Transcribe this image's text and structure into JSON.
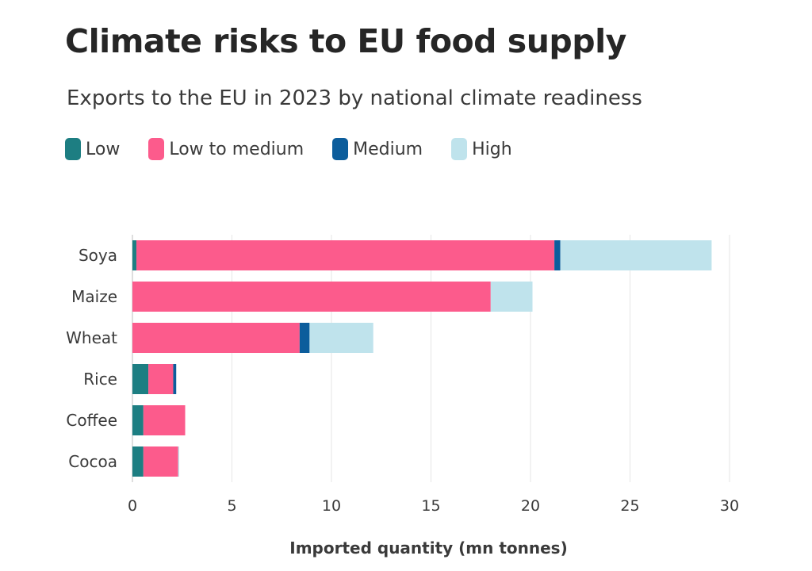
{
  "chart_data": {
    "type": "bar",
    "orientation": "horizontal",
    "stacked": true,
    "title": "Climate risks to EU food supply",
    "subtitle": "Exports to the EU in 2023 by national climate readiness",
    "xlabel": "Imported quantity (mn tonnes)",
    "ylabel": "",
    "xlim": [
      0,
      30
    ],
    "xticks": [
      "0",
      "5",
      "10",
      "15",
      "20",
      "25",
      "30"
    ],
    "grid": "vertical",
    "legend_position": "top-left",
    "categories": [
      "Soya",
      "Maize",
      "Wheat",
      "Rice",
      "Coffee",
      "Cocoa"
    ],
    "series": [
      {
        "name": "Low",
        "color": "#1d7e82",
        "values": [
          0.2,
          0.0,
          0.0,
          0.8,
          0.55,
          0.55
        ]
      },
      {
        "name": "Low to medium",
        "color": "#fc5b8c",
        "values": [
          21.0,
          18.0,
          8.4,
          1.25,
          2.1,
          1.75
        ]
      },
      {
        "name": "Medium",
        "color": "#0c5d9c",
        "values": [
          0.3,
          0.0,
          0.5,
          0.15,
          0.0,
          0.0
        ]
      },
      {
        "name": "High",
        "color": "#bfe3ec",
        "values": [
          7.6,
          2.1,
          3.2,
          0.0,
          0.0,
          0.05
        ]
      }
    ]
  }
}
